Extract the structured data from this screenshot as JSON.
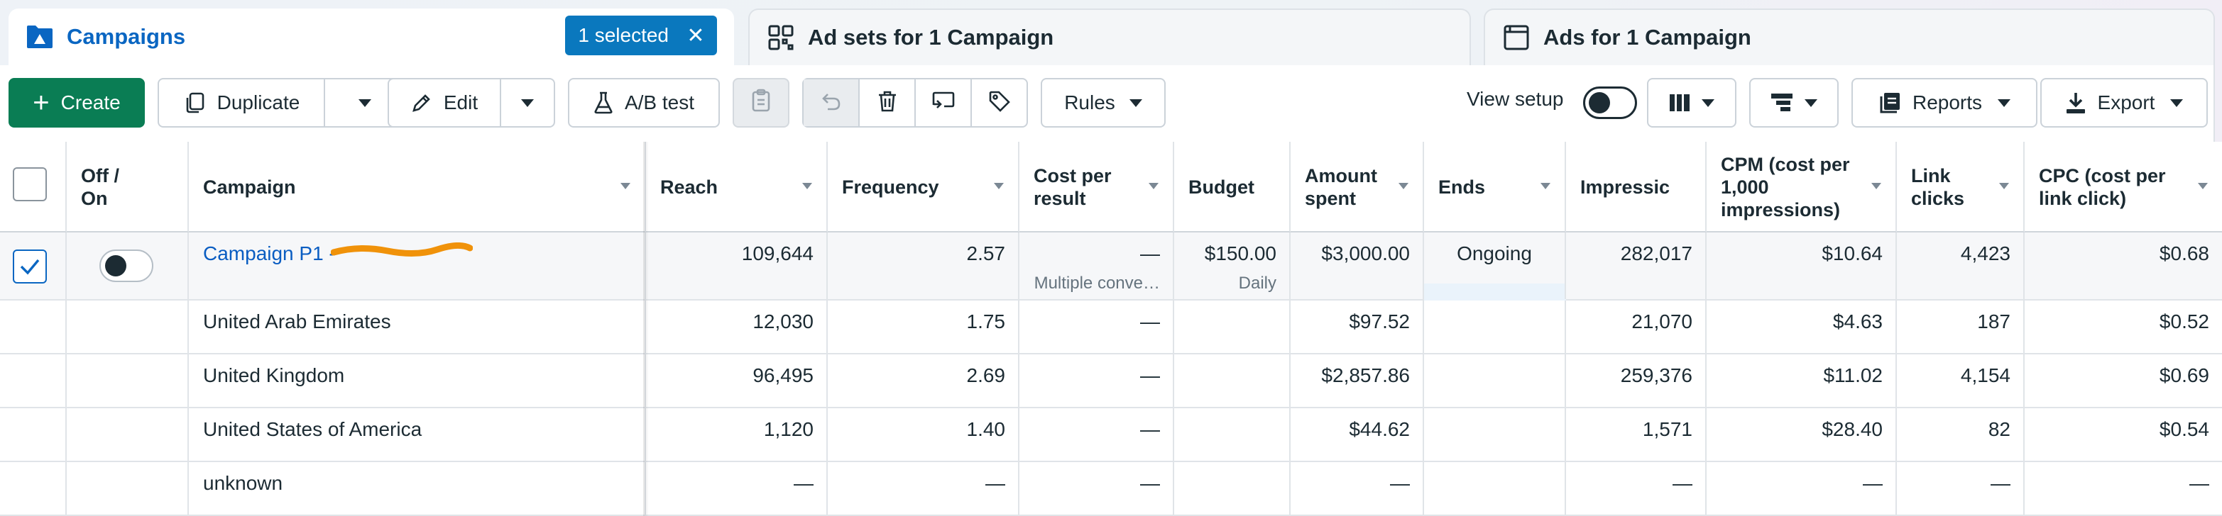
{
  "tabs": {
    "campaigns": {
      "title": "Campaigns",
      "selected_badge": "1 selected",
      "icon": "folder-flag-icon"
    },
    "adsets": {
      "title": "Ad sets for 1 Campaign",
      "icon": "grid-icon"
    },
    "ads": {
      "title": "Ads for 1 Campaign",
      "icon": "window-icon"
    }
  },
  "toolbar": {
    "create_label": "Create",
    "duplicate_label": "Duplicate",
    "edit_label": "Edit",
    "abtest_label": "A/B test",
    "rules_label": "Rules",
    "view_setup_label": "View setup",
    "view_setup_on": false,
    "reports_label": "Reports",
    "export_label": "Export"
  },
  "table": {
    "headers": {
      "off_on": "Off / On",
      "campaign": "Campaign",
      "reach": "Reach",
      "frequency": "Frequency",
      "cost_per_result": "Cost per result",
      "budget": "Budget",
      "amount_spent": "Amount spent",
      "ends": "Ends",
      "impressions": "Impressic",
      "cpm": "CPM (cost per 1,000 impressions)",
      "link_clicks": "Link clicks",
      "cpc": "CPC (cost per link click)"
    },
    "campaign_row": {
      "selected": true,
      "on": false,
      "name": "Campaign P1 - ",
      "reach": "109,644",
      "frequency": "2.57",
      "cost_per_result": "—",
      "cost_per_result_sub": "Multiple conve…",
      "budget": "$150.00",
      "budget_sub": "Daily",
      "amount_spent": "$3,000.00",
      "ends": "Ongoing",
      "impressions": "282,017",
      "cpm": "$10.64",
      "link_clicks": "4,423",
      "cpc": "$0.68"
    },
    "rows": [
      {
        "name": "United Arab Emirates",
        "reach": "12,030",
        "frequency": "1.75",
        "cost_per_result": "—",
        "amount_spent": "$97.52",
        "impressions": "21,070",
        "cpm": "$4.63",
        "link_clicks": "187",
        "cpc": "$0.52"
      },
      {
        "name": "United Kingdom",
        "reach": "96,495",
        "frequency": "2.69",
        "cost_per_result": "—",
        "amount_spent": "$2,857.86",
        "impressions": "259,376",
        "cpm": "$11.02",
        "link_clicks": "4,154",
        "cpc": "$0.69"
      },
      {
        "name": "United States of America",
        "reach": "1,120",
        "frequency": "1.40",
        "cost_per_result": "—",
        "amount_spent": "$44.62",
        "impressions": "1,571",
        "cpm": "$28.40",
        "link_clicks": "82",
        "cpc": "$0.54"
      },
      {
        "name": "unknown",
        "reach": "—",
        "frequency": "—",
        "cost_per_result": "—",
        "amount_spent": "—",
        "impressions": "—",
        "cpm": "—",
        "link_clicks": "—",
        "cpc": "—"
      }
    ]
  },
  "colors": {
    "accent": "#0a66c2",
    "create": "#0a7d54",
    "badge": "#0a78be",
    "redaction": "#f0920a"
  }
}
